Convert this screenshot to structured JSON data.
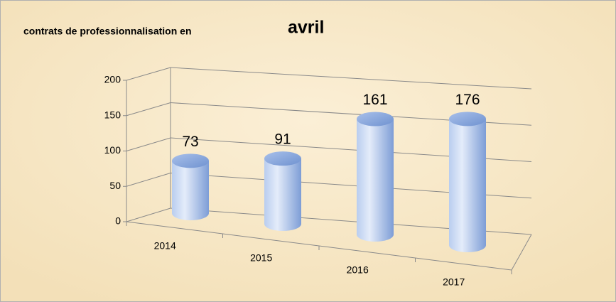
{
  "chart_data": {
    "type": "bar",
    "title": "contrats de professionnalisation en",
    "title_highlight": "avril",
    "categories": [
      "2014",
      "2015",
      "2016",
      "2017"
    ],
    "values": [
      73,
      91,
      161,
      176
    ],
    "color": "#8eaee0",
    "ylim": [
      0,
      200
    ],
    "yticks": [
      0,
      50,
      100,
      150,
      200
    ],
    "grid": true
  }
}
